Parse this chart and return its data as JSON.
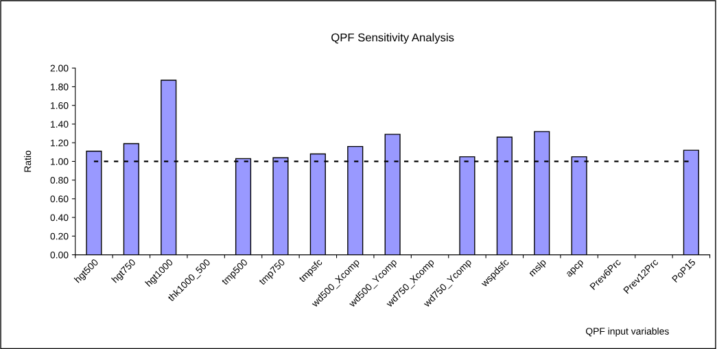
{
  "chart_data": {
    "type": "bar",
    "title": "QPF Sensitivity Analysis",
    "xlabel": "QPF input variables",
    "ylabel": "Ratio",
    "categories": [
      "hgt500",
      "hgt750",
      "hgt1000",
      "thk1000_500",
      "tmp500",
      "tmp750",
      "tmpsfc",
      "wd500_Xcomp",
      "wd500_Ycomp",
      "wd750_Xcomp",
      "wd750_Ycomp",
      "wspdsfc",
      "mslp",
      "apcp",
      "Prev6Prc",
      "Prev12Prc",
      "PoP15"
    ],
    "values": [
      1.11,
      1.19,
      1.87,
      null,
      1.03,
      1.04,
      1.08,
      1.16,
      1.29,
      null,
      1.05,
      1.26,
      1.32,
      1.05,
      null,
      null,
      1.12
    ],
    "color": "#9999ff",
    "ylim": [
      0,
      2
    ],
    "yticks": [
      {
        "value": 0,
        "label": "0.00"
      },
      {
        "value": 0.2,
        "label": "0.20"
      },
      {
        "value": 0.4,
        "label": "0.40"
      },
      {
        "value": 0.6,
        "label": "0.60"
      },
      {
        "value": 0.8,
        "label": "0.80"
      },
      {
        "value": 1.0,
        "label": "1.00"
      },
      {
        "value": 1.2,
        "label": "1.20"
      },
      {
        "value": 1.4,
        "label": "1.40"
      },
      {
        "value": 1.6,
        "label": "1.60"
      },
      {
        "value": 1.8,
        "label": "1.80"
      },
      {
        "value": 2.0,
        "label": "2.00"
      }
    ],
    "ref_lines": [
      {
        "axis": "y",
        "value": 1.0,
        "color": "#000000",
        "line_style": "dotted"
      }
    ],
    "grid": false,
    "legend": false
  }
}
